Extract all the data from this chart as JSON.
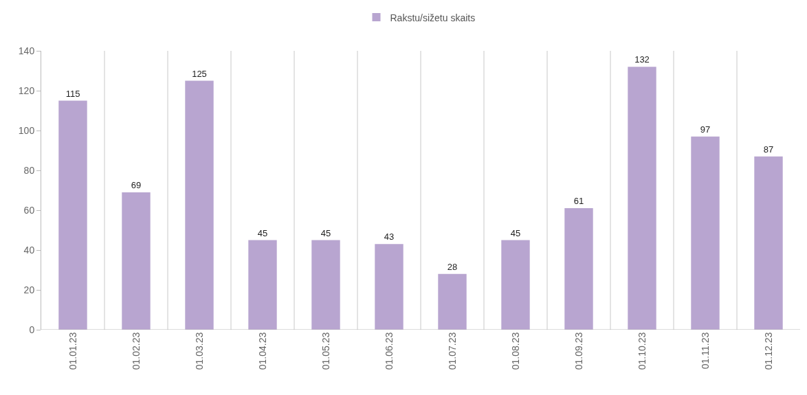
{
  "chart_data": {
    "type": "bar",
    "categories": [
      "01.01.23",
      "01.02.23",
      "01.03.23",
      "01.04.23",
      "01.05.23",
      "01.06.23",
      "01.07.23",
      "01.08.23",
      "01.09.23",
      "01.10.23",
      "01.11.23",
      "01.12.23"
    ],
    "series": [
      {
        "name": "Rakstu/sižetu skaits",
        "color": "#b8a5d0",
        "values": [
          115,
          69,
          125,
          45,
          45,
          43,
          28,
          45,
          61,
          132,
          97,
          87
        ]
      }
    ],
    "ylim": [
      0,
      140
    ],
    "yticks": [
      0,
      20,
      40,
      60,
      80,
      100,
      120,
      140
    ],
    "grid": "x",
    "legend": "top",
    "data_labels": true
  }
}
